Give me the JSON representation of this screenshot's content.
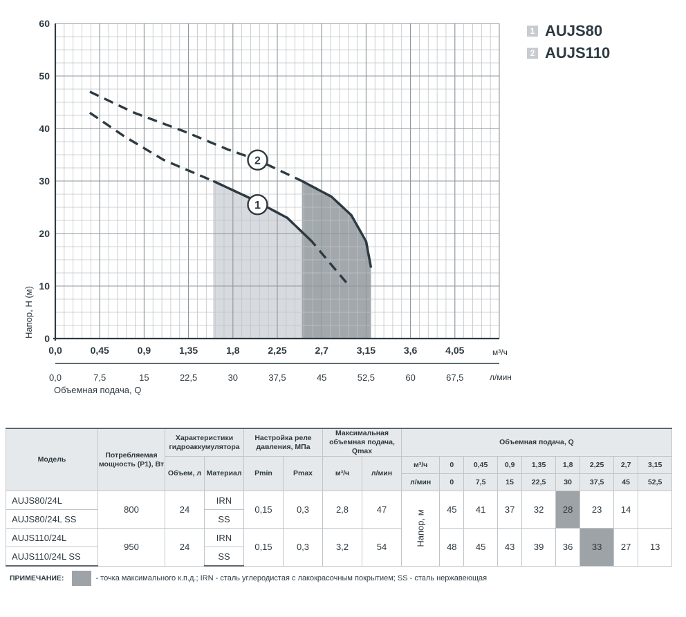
{
  "chart_data": {
    "type": "line",
    "xlabel": "Объемная подача, Q",
    "ylabel": "Напор, Н (м)",
    "x_unit_top": "м³/ч",
    "x_unit_bottom": "л/мин",
    "xlim": [
      0,
      4.5
    ],
    "ylim": [
      0,
      60
    ],
    "grid": true,
    "x_ticks_m3h": [
      "0,0",
      "0,45",
      "0,9",
      "1,35",
      "1,8",
      "2,25",
      "2,7",
      "3,15",
      "3,6",
      "4,05"
    ],
    "x_tick_values": [
      0,
      0.45,
      0.9,
      1.35,
      1.8,
      2.25,
      2.7,
      3.15,
      3.6,
      4.05
    ],
    "x_ticks_lmin": [
      "0,0",
      "7,5",
      "15",
      "22,5",
      "30",
      "37,5",
      "45",
      "52,5",
      "60",
      "67,5"
    ],
    "y_ticks": [
      "0",
      "10",
      "20",
      "30",
      "40",
      "50",
      "60"
    ],
    "y_tick_values": [
      0,
      10,
      20,
      30,
      40,
      50,
      60
    ],
    "legend_position": "top-right",
    "series": [
      {
        "name": "AUJS80",
        "label_num": "1",
        "marker_label": "1",
        "points": [
          [
            0.35,
            43
          ],
          [
            0.7,
            38.5
          ],
          [
            1.1,
            34
          ],
          [
            1.6,
            30
          ],
          [
            2.0,
            26.5
          ],
          [
            2.35,
            23
          ],
          [
            2.6,
            18.5
          ],
          [
            2.8,
            14
          ],
          [
            2.98,
            10
          ]
        ],
        "working_range": [
          1.6,
          2.7
        ],
        "marker_at": [
          2.05,
          25.5
        ]
      },
      {
        "name": "AUJS110",
        "label_num": "2",
        "marker_label": "2",
        "points": [
          [
            0.35,
            47
          ],
          [
            0.8,
            43
          ],
          [
            1.3,
            39.5
          ],
          [
            1.75,
            36
          ],
          [
            2.05,
            34
          ],
          [
            2.5,
            30
          ],
          [
            2.8,
            27
          ],
          [
            3.0,
            23.5
          ],
          [
            3.15,
            18.5
          ],
          [
            3.2,
            13.5
          ]
        ],
        "working_range": [
          2.5,
          3.2
        ],
        "marker_at": [
          2.05,
          34
        ]
      }
    ],
    "colors": {
      "line": "#2d3a42",
      "area_1": "#d3d6da",
      "area_2": "#9ea3a8",
      "grid": "#bfc4c8"
    }
  },
  "legend": [
    {
      "num": "1",
      "name": "AUJS80"
    },
    {
      "num": "2",
      "name": "AUJS110"
    }
  ],
  "table": {
    "headers": {
      "model": "Модель",
      "power": "Потребляемая мощность (P1), Вт",
      "accum": "Характеристики гидроаккумулятора",
      "relay": "Настройка реле давления, МПа",
      "maxflow": "Максимальная объемная подача, Qmax",
      "flow": "Объемная подача, Q",
      "volume": "Объем, л",
      "material": "Материал",
      "pmin": "Pmin",
      "pmax": "Pmax",
      "m3h": "м³/ч",
      "lmin": "л/мин",
      "m3h_short": "м³/ч",
      "lmin_short": "л/мин",
      "head": "Напор, м"
    },
    "q_m3h": [
      "0",
      "0,45",
      "0,9",
      "1,35",
      "1,8",
      "2,25",
      "2,7",
      "3,15"
    ],
    "q_lmin": [
      "0",
      "7,5",
      "15",
      "22,5",
      "30",
      "37,5",
      "45",
      "52,5"
    ],
    "groups": [
      {
        "models": [
          "AUJS80/24L",
          "AUJS80/24L SS"
        ],
        "materials": [
          "IRN",
          "SS"
        ],
        "power": "800",
        "volume": "24",
        "pmin": "0,15",
        "pmax": "0,3",
        "qmax_m3h": "2,8",
        "qmax_lmin": "47",
        "heads": [
          "45",
          "41",
          "37",
          "32",
          "28",
          "23",
          "14",
          ""
        ],
        "highlight_index": 4
      },
      {
        "models": [
          "AUJS110/24L",
          "AUJS110/24L SS"
        ],
        "materials": [
          "IRN",
          "SS"
        ],
        "power": "950",
        "volume": "24",
        "pmin": "0,15",
        "pmax": "0,3",
        "qmax_m3h": "3,2",
        "qmax_lmin": "54",
        "heads": [
          "48",
          "45",
          "43",
          "39",
          "36",
          "33",
          "27",
          "13"
        ],
        "highlight_index": 5
      }
    ]
  },
  "note": {
    "label": "ПРИМЕЧАНИЕ:",
    "text": "- точка максимального к.п.д.; IRN - сталь углеродистая с лакокрасочным покрытием; SS - сталь нержавеющая"
  }
}
